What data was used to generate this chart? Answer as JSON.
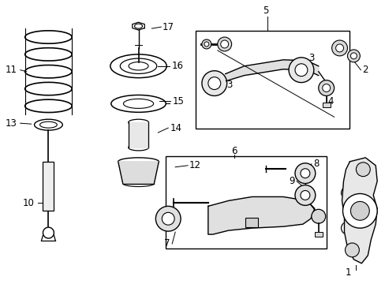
{
  "background_color": "#ffffff",
  "fig_width": 4.89,
  "fig_height": 3.6,
  "dpi": 100,
  "label_fontsize": 8.5,
  "label_color": "#000000",
  "line_color": "#000000"
}
